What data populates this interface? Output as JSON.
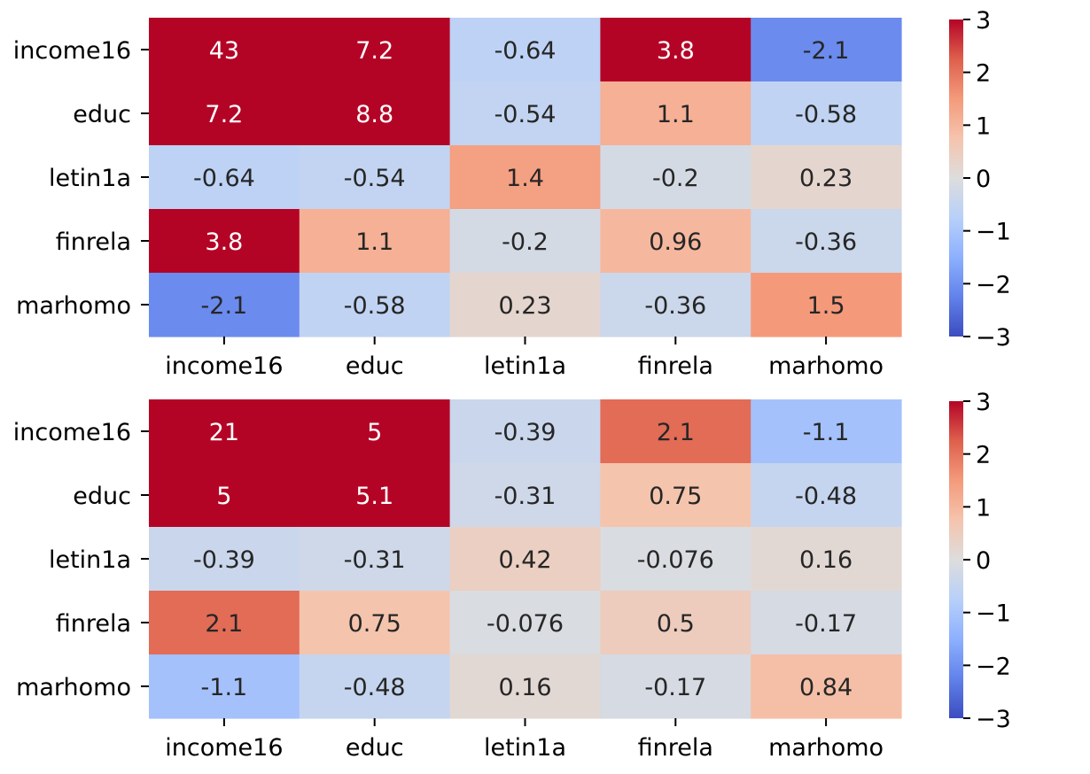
{
  "colormap": "coolwarm",
  "chart_data": [
    {
      "type": "heatmap",
      "categories_x": [
        "income16",
        "educ",
        "letin1a",
        "finrela",
        "marhomo"
      ],
      "categories_y": [
        "income16",
        "educ",
        "letin1a",
        "finrela",
        "marhomo"
      ],
      "cells": [
        [
          43,
          7.2,
          -0.64,
          3.8,
          -2.1
        ],
        [
          7.2,
          8.8,
          -0.54,
          1.1,
          -0.58
        ],
        [
          -0.64,
          -0.54,
          1.4,
          -0.2,
          0.23
        ],
        [
          3.8,
          1.1,
          -0.2,
          0.96,
          -0.36
        ],
        [
          -2.1,
          -0.58,
          0.23,
          -0.36,
          1.5
        ]
      ],
      "labels": [
        [
          "43",
          "7.2",
          "-0.64",
          "3.8",
          "-2.1"
        ],
        [
          "7.2",
          "8.8",
          "-0.54",
          "1.1",
          "-0.58"
        ],
        [
          "-0.64",
          "-0.54",
          "1.4",
          "-0.2",
          "0.23"
        ],
        [
          "3.8",
          "1.1",
          "-0.2",
          "0.96",
          "-0.36"
        ],
        [
          "-2.1",
          "-0.58",
          "0.23",
          "-0.36",
          "1.5"
        ]
      ],
      "vmin": -3,
      "vmax": 3,
      "colorbar_ticks": [
        3,
        2,
        1,
        0,
        -1,
        -2,
        -3
      ],
      "colorbar_tick_labels": [
        "3",
        "2",
        "1",
        "0",
        "−1",
        "−2",
        "−3"
      ]
    },
    {
      "type": "heatmap",
      "categories_x": [
        "income16",
        "educ",
        "letin1a",
        "finrela",
        "marhomo"
      ],
      "categories_y": [
        "income16",
        "educ",
        "letin1a",
        "finrela",
        "marhomo"
      ],
      "cells": [
        [
          21,
          5,
          -0.39,
          2.1,
          -1.1
        ],
        [
          5,
          5.1,
          -0.31,
          0.75,
          -0.48
        ],
        [
          -0.39,
          -0.31,
          0.42,
          -0.076,
          0.16
        ],
        [
          2.1,
          0.75,
          -0.076,
          0.5,
          -0.17
        ],
        [
          -1.1,
          -0.48,
          0.16,
          -0.17,
          0.84
        ]
      ],
      "labels": [
        [
          "21",
          "5",
          "-0.39",
          "2.1",
          "-1.1"
        ],
        [
          "5",
          "5.1",
          "-0.31",
          "0.75",
          "-0.48"
        ],
        [
          "-0.39",
          "-0.31",
          "0.42",
          "-0.076",
          "0.16"
        ],
        [
          "2.1",
          "0.75",
          "-0.076",
          "0.5",
          "-0.17"
        ],
        [
          "-1.1",
          "-0.48",
          "0.16",
          "-0.17",
          "0.84"
        ]
      ],
      "vmin": -3,
      "vmax": 3,
      "colorbar_ticks": [
        3,
        2,
        1,
        0,
        -1,
        -2,
        -3
      ],
      "colorbar_tick_labels": [
        "3",
        "2",
        "1",
        "0",
        "−1",
        "−2",
        "−3"
      ]
    }
  ]
}
